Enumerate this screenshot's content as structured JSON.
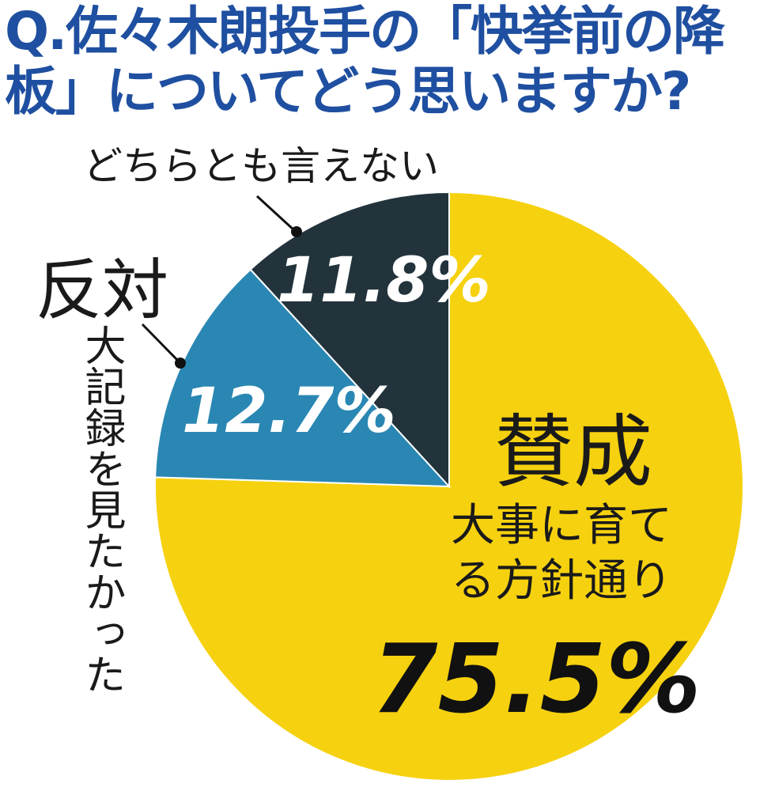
{
  "chart_data": {
    "type": "pie",
    "title": "Q.佐々木朗投手の「快挙前の降板」についてどう思いますか?",
    "categories": [
      "賛成",
      "反対",
      "どちらとも言えない"
    ],
    "sublabels": [
      "大事に育てる方針通り",
      "大記録を見たかった",
      null
    ],
    "values": [
      75.5,
      12.7,
      11.8
    ],
    "value_labels": [
      "75.5%",
      "12.7%",
      "11.8%"
    ],
    "colors": [
      "#f6d10f",
      "#2a87b3",
      "#22333c"
    ]
  }
}
